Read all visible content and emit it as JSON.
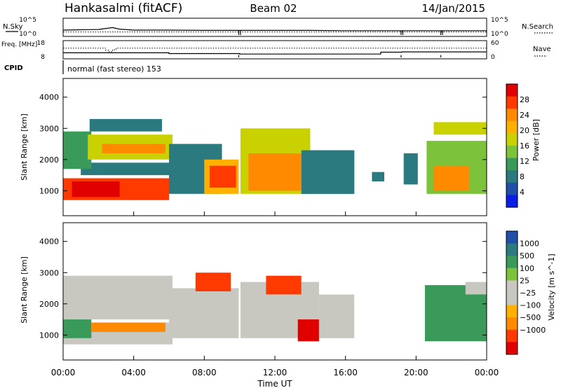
{
  "header": {
    "station": "Hankasalmi (fitACF)",
    "beam": "Beam 02",
    "date": "14/Jan/2015"
  },
  "chart_data": [
    {
      "panel": "noise",
      "type": "line",
      "left_label": "N.Sky",
      "right_label": "N.Search",
      "left_ticks": [
        "10^5",
        "10^0"
      ],
      "right_ticks": [
        "10^5",
        "10^0"
      ],
      "xlim": [
        0,
        24
      ],
      "series_sky": [
        [
          0,
          1.6
        ],
        [
          1,
          1.7
        ],
        [
          2,
          1.8
        ],
        [
          2.8,
          2.4
        ],
        [
          3.2,
          1.9
        ],
        [
          4,
          1.6
        ],
        [
          6,
          1.6
        ],
        [
          8,
          1.5
        ],
        [
          10,
          1.5
        ],
        [
          12,
          1.5
        ],
        [
          14,
          1.5
        ],
        [
          16,
          1.4
        ],
        [
          18,
          1.4
        ],
        [
          20,
          1.4
        ],
        [
          22,
          1.4
        ],
        [
          24,
          1.4
        ]
      ],
      "search_level": 1.0,
      "gaps": [
        [
          9.95,
          10.05
        ],
        [
          19.15,
          19.25
        ],
        [
          21.4,
          21.5
        ]
      ]
    },
    {
      "panel": "frequency",
      "type": "line",
      "left_label": "Freq. [MHz]",
      "right_label": "Nave",
      "left_ticks": [
        "18",
        "8"
      ],
      "right_ticks": [
        "60",
        "0"
      ],
      "xlim": [
        0,
        24
      ],
      "freq_steps": [
        [
          0,
          6,
          11.0
        ],
        [
          6,
          10,
          10.5
        ],
        [
          10,
          18,
          10.2
        ],
        [
          18,
          19.2,
          11.4
        ],
        [
          19.2,
          24,
          11.6
        ]
      ],
      "nave_steps": [
        [
          0,
          2.4,
          36
        ],
        [
          2.4,
          2.6,
          28
        ],
        [
          2.6,
          2.8,
          22
        ],
        [
          2.8,
          3.0,
          30
        ],
        [
          3.0,
          24,
          36
        ]
      ]
    },
    {
      "panel": "cpid",
      "type": "table",
      "label": "CPID",
      "mode": "normal (fast stereo) 153"
    },
    {
      "panel": "power",
      "type": "heatmap",
      "ylabel": "Slant Range [km]",
      "yticks": [
        1000,
        2000,
        3000,
        4000
      ],
      "ylim": [
        200,
        4600
      ],
      "colorbar_label": "Power [dB]",
      "colorbar_ticks": [
        28,
        24,
        20,
        16,
        12,
        8,
        4
      ],
      "colorbar_colors": [
        "#e00000",
        "#ff3a00",
        "#ff8a00",
        "#ffb000",
        "#c9d200",
        "#7cc23a",
        "#3a9a5a",
        "#2a7a80",
        "#1f4fa8",
        "#0a1ee6"
      ],
      "bands": [
        {
          "t0": 0.0,
          "t1": 6.0,
          "r0": 700,
          "r1": 1400,
          "v": 27
        },
        {
          "t0": 0.5,
          "t1": 3.2,
          "r0": 800,
          "r1": 1300,
          "v": 30
        },
        {
          "t0": 1.0,
          "t1": 6.0,
          "r0": 1500,
          "r1": 1900,
          "v": 9
        },
        {
          "t0": 0.0,
          "t1": 1.6,
          "r0": 1700,
          "r1": 2900,
          "v": 12
        },
        {
          "t0": 1.4,
          "t1": 6.2,
          "r0": 2000,
          "r1": 2800,
          "v": 18
        },
        {
          "t0": 2.2,
          "t1": 5.8,
          "r0": 2200,
          "r1": 2500,
          "v": 24
        },
        {
          "t0": 1.5,
          "t1": 5.6,
          "r0": 2900,
          "r1": 3300,
          "v": 8
        },
        {
          "t0": 6.0,
          "t1": 9.0,
          "r0": 900,
          "r1": 2500,
          "v": 7
        },
        {
          "t0": 8.0,
          "t1": 10.0,
          "r0": 900,
          "r1": 2000,
          "v": 22
        },
        {
          "t0": 8.3,
          "t1": 9.8,
          "r0": 1100,
          "r1": 1800,
          "v": 27
        },
        {
          "t0": 10.0,
          "t1": 14.0,
          "r0": 900,
          "r1": 3000,
          "v": 18
        },
        {
          "t0": 10.5,
          "t1": 13.5,
          "r0": 1000,
          "r1": 2200,
          "v": 25
        },
        {
          "t0": 13.5,
          "t1": 16.5,
          "r0": 900,
          "r1": 2300,
          "v": 9
        },
        {
          "t0": 17.5,
          "t1": 18.2,
          "r0": 1300,
          "r1": 1600,
          "v": 7
        },
        {
          "t0": 19.3,
          "t1": 20.1,
          "r0": 1200,
          "r1": 2200,
          "v": 8
        },
        {
          "t0": 20.6,
          "t1": 24.0,
          "r0": 900,
          "r1": 2600,
          "v": 14
        },
        {
          "t0": 21.0,
          "t1": 23.0,
          "r0": 1000,
          "r1": 1800,
          "v": 24
        },
        {
          "t0": 21.0,
          "t1": 24.0,
          "r0": 2800,
          "r1": 3200,
          "v": 18
        }
      ]
    },
    {
      "panel": "velocity",
      "type": "heatmap",
      "ylabel": "Slant Range [km]",
      "yticks": [
        1000,
        2000,
        3000,
        4000
      ],
      "ylim": [
        200,
        4600
      ],
      "xlabel": "Time UT",
      "xticks": [
        "00:00",
        "04:00",
        "08:00",
        "12:00",
        "16:00",
        "20:00",
        "00:00"
      ],
      "xlim": [
        0,
        24
      ],
      "colorbar_label": "Velocity [m s^-1]",
      "colorbar_ticks": [
        "1000",
        "500",
        "100",
        "25",
        "−25",
        "−100",
        "−500",
        "−1000"
      ],
      "colorbar_colors": [
        "#1f4fa8",
        "#2a7a80",
        "#3a9a5a",
        "#7cc23a",
        "#c8c8c0",
        "#c8c8c0",
        "#ffb000",
        "#ff8a00",
        "#ff3a00",
        "#e00000"
      ],
      "bands": [
        {
          "t0": 0.0,
          "t1": 6.2,
          "r0": 700,
          "r1": 1400,
          "v": 0
        },
        {
          "t0": 0.0,
          "t1": 1.6,
          "r0": 900,
          "r1": 1800,
          "v": 150
        },
        {
          "t0": 1.6,
          "t1": 5.8,
          "r0": 1100,
          "r1": 1400,
          "v": -150
        },
        {
          "t0": 0.0,
          "t1": 6.2,
          "r0": 1500,
          "r1": 2900,
          "v": 0
        },
        {
          "t0": 6.0,
          "t1": 10.0,
          "r0": 900,
          "r1": 2500,
          "v": 0
        },
        {
          "t0": 7.5,
          "t1": 9.5,
          "r0": 2400,
          "r1": 3000,
          "v": -600
        },
        {
          "t0": 10.0,
          "t1": 14.5,
          "r0": 900,
          "r1": 2700,
          "v": 0
        },
        {
          "t0": 11.5,
          "t1": 13.5,
          "r0": 2300,
          "r1": 2900,
          "v": -600
        },
        {
          "t0": 13.3,
          "t1": 14.5,
          "r0": 800,
          "r1": 1500,
          "v": -900
        },
        {
          "t0": 14.5,
          "t1": 16.5,
          "r0": 900,
          "r1": 2300,
          "v": 0
        },
        {
          "t0": 20.5,
          "t1": 24.0,
          "r0": 800,
          "r1": 2600,
          "v": 80
        },
        {
          "t0": 21.5,
          "t1": 24.0,
          "r0": 1400,
          "r1": 2000,
          "v": 200
        },
        {
          "t0": 22.8,
          "t1": 24.0,
          "r0": 2300,
          "r1": 2700,
          "v": 0
        }
      ]
    }
  ]
}
